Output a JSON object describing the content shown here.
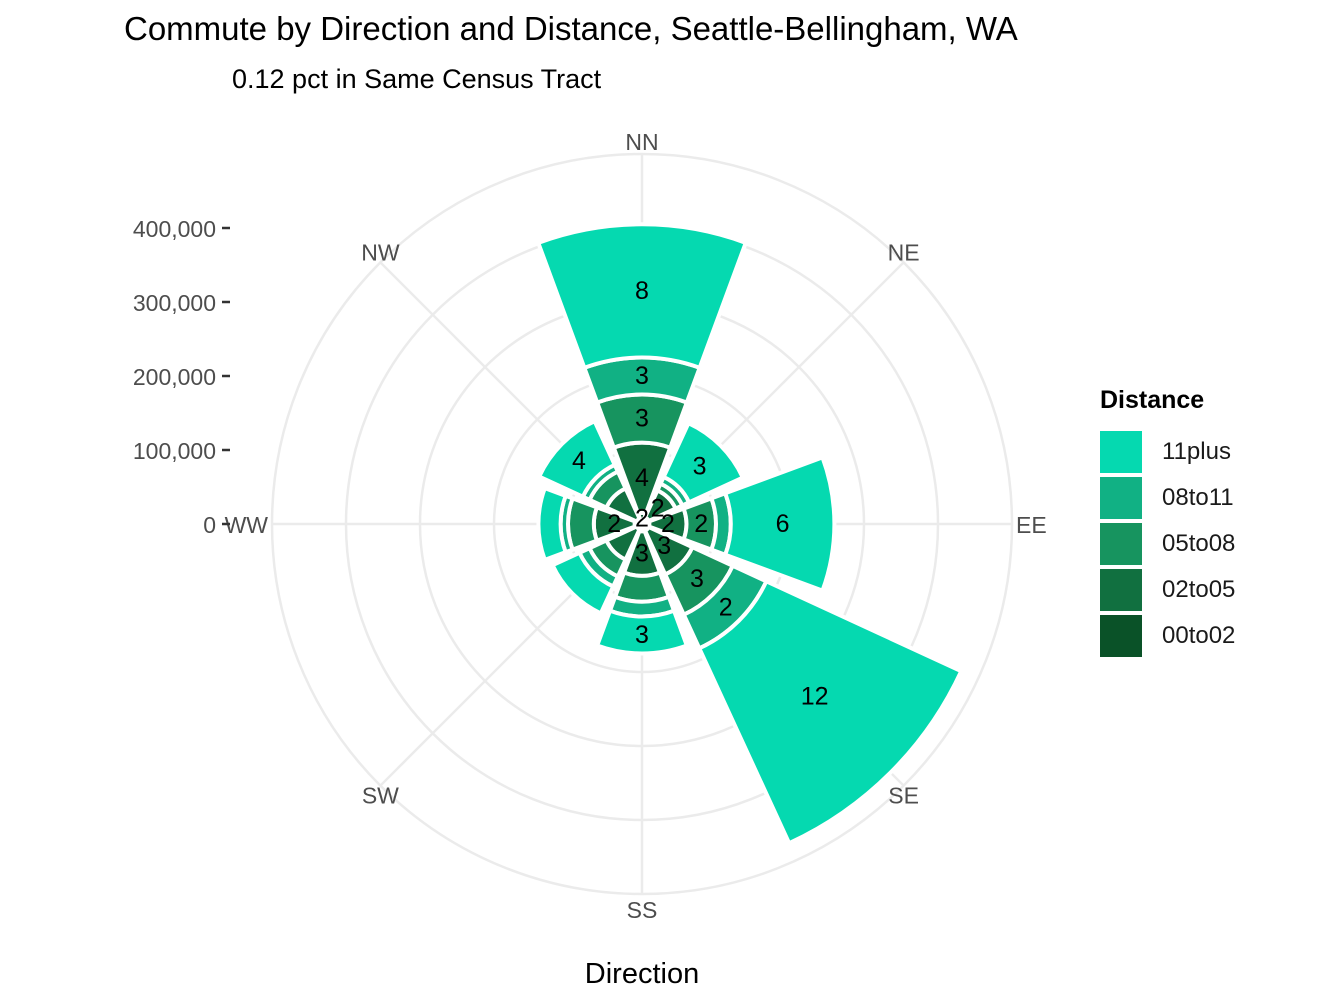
{
  "chart_data": {
    "type": "stacked-polar-bar",
    "title": "Commute by Direction and Distance, Seattle-Bellingham, WA",
    "subtitle": "0.12 pct in Same Census Tract",
    "xlabel": "Direction",
    "ylabel": "",
    "ylim": [
      0,
      400000
    ],
    "yticks": [
      0,
      100000,
      200000,
      300000,
      400000
    ],
    "ytick_labels": [
      "0",
      "100,000",
      "200,000",
      "300,000",
      "400,000"
    ],
    "grid": true,
    "legend_position": "right",
    "legend_title": "Distance",
    "categories": [
      "NN",
      "NE",
      "EE",
      "SE",
      "SS",
      "SW",
      "WW",
      "NW"
    ],
    "series": [
      {
        "name": "00to02",
        "color": "#0a5228",
        "values": [
          15000,
          10000,
          10000,
          10000,
          10000,
          8000,
          10000,
          8000
        ],
        "labels": [
          "2",
          "",
          "",
          "",
          "",
          "",
          "",
          ""
        ]
      },
      {
        "name": "02to05",
        "color": "#117040",
        "values": [
          95000,
          40000,
          50000,
          65000,
          60000,
          45000,
          55000,
          45000
        ],
        "labels": [
          "4",
          "2",
          "2",
          "3",
          "3",
          "",
          "2",
          ""
        ]
      },
      {
        "name": "05to08",
        "color": "#17945f",
        "values": [
          65000,
          10000,
          40000,
          60000,
          35000,
          25000,
          35000,
          25000
        ],
        "labels": [
          "3",
          "",
          "2",
          "3",
          "",
          "",
          "",
          ""
        ]
      },
      {
        "name": "08to11",
        "color": "#11b184",
        "values": [
          50000,
          10000,
          20000,
          50000,
          20000,
          15000,
          10000,
          10000
        ],
        "labels": [
          "3",
          "",
          "",
          "2",
          "",
          "",
          "",
          ""
        ]
      },
      {
        "name": "11plus",
        "color": "#05d9b0",
        "values": [
          180000,
          80000,
          140000,
          290000,
          50000,
          40000,
          30000,
          65000
        ],
        "labels": [
          "8",
          "3",
          "6",
          "12",
          "3",
          "",
          "",
          "4"
        ]
      }
    ]
  }
}
